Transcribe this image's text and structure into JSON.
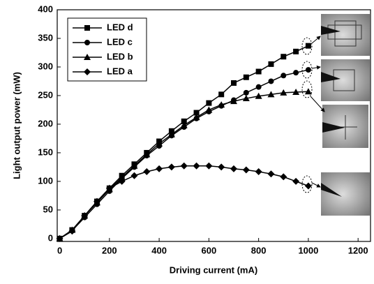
{
  "chart_data": {
    "type": "line",
    "x_label": "Driving current (mA)",
    "y_label": "Light output power (mW)",
    "x": [
      0,
      50,
      100,
      150,
      200,
      250,
      300,
      350,
      400,
      450,
      500,
      550,
      600,
      650,
      700,
      750,
      800,
      850,
      900,
      950,
      1000
    ],
    "series": [
      {
        "name": "LED d",
        "color": "#000000",
        "marker": "square",
        "values": [
          0,
          15,
          40,
          65,
          88,
          110,
          130,
          150,
          170,
          188,
          205,
          220,
          237,
          252,
          272,
          282,
          292,
          305,
          318,
          327,
          337
        ]
      },
      {
        "name": "LED c",
        "color": "#000000",
        "marker": "circle",
        "values": [
          0,
          14,
          37,
          60,
          83,
          105,
          125,
          145,
          162,
          180,
          195,
          210,
          222,
          232,
          242,
          255,
          265,
          275,
          285,
          290,
          295
        ]
      },
      {
        "name": "LED b",
        "color": "#000000",
        "marker": "triangle",
        "values": [
          0,
          15,
          40,
          63,
          86,
          107,
          127,
          147,
          166,
          182,
          198,
          212,
          225,
          234,
          240,
          245,
          249,
          252,
          255,
          256,
          257
        ]
      },
      {
        "name": "LED a",
        "color": "#000000",
        "marker": "diamond",
        "values": [
          0,
          13,
          40,
          65,
          88,
          100,
          110,
          117,
          122,
          125,
          127,
          127,
          127,
          125,
          122,
          120,
          117,
          113,
          108,
          100,
          92
        ]
      }
    ],
    "xlim": [
      -10,
      1250
    ],
    "ylim": [
      -5,
      400
    ],
    "xticks": [
      0,
      200,
      400,
      600,
      800,
      1000,
      1200
    ],
    "yticks": [
      0,
      50,
      100,
      150,
      200,
      250,
      300,
      350,
      400
    ]
  }
}
